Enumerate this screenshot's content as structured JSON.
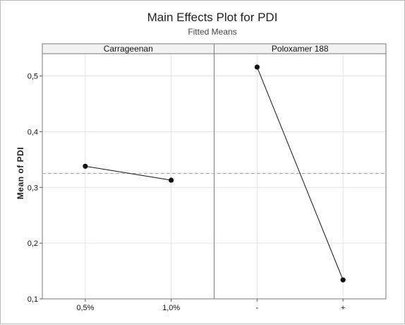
{
  "chart_data": {
    "type": "line",
    "title": "Main Effects Plot for PDI",
    "subtitle": "Fitted Means",
    "ylabel": "Mean of PDI",
    "ylim": [
      0.1,
      0.54
    ],
    "yticks": [
      0.1,
      0.2,
      0.3,
      0.4,
      0.5
    ],
    "ytick_labels": [
      "0,1",
      "0,2",
      "0,3",
      "0,4",
      "0,5"
    ],
    "reference_line": 0.325,
    "grid": true,
    "panels": [
      {
        "name": "Carrageenan",
        "categories": [
          "0,5%",
          "1,0%"
        ],
        "values": [
          0.338,
          0.313
        ]
      },
      {
        "name": "Poloxamer 188",
        "categories": [
          "-",
          "+"
        ],
        "values": [
          0.516,
          0.134
        ]
      }
    ]
  }
}
